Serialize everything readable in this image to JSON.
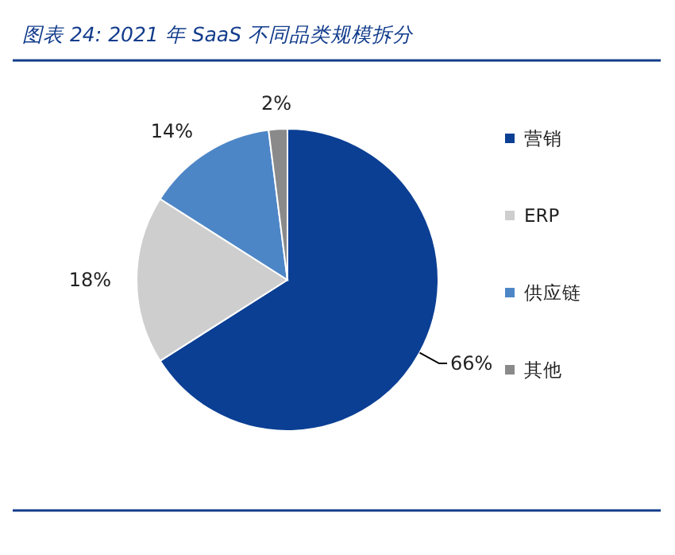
{
  "chart_data": {
    "type": "pie",
    "title": "图表 24:  2021 年 SaaS 不同品类规模拆分",
    "categories": [
      "营销",
      "ERP",
      "供应链",
      "其他"
    ],
    "values": [
      66,
      18,
      14,
      2
    ],
    "colors": [
      "#0b3f94",
      "#cecece",
      "#4d86c6",
      "#8a8a8a"
    ],
    "value_labels": [
      "66%",
      "18%",
      "14%",
      "2%"
    ],
    "legend": "right"
  }
}
